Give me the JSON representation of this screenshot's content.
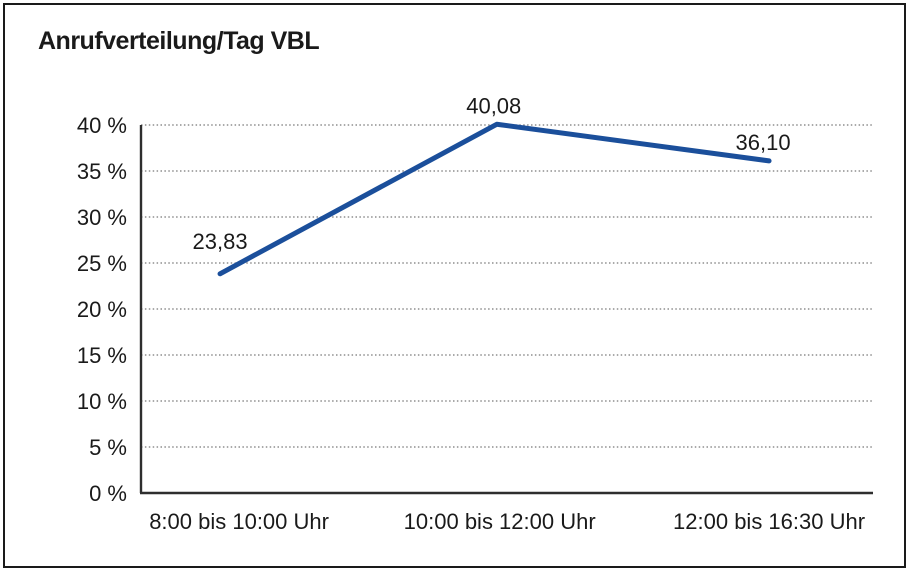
{
  "chart_data": {
    "type": "line",
    "title": "Anrufverteilung/Tag VBL",
    "categories": [
      "8:00 bis 10:00 Uhr",
      "10:00 bis 12:00 Uhr",
      "12:00 bis 16:30 Uhr"
    ],
    "series": [
      {
        "name": "Anrufverteilung/Tag VBL",
        "values": [
          23.83,
          40.08,
          36.1
        ]
      }
    ],
    "value_labels": [
      "23,83",
      "40,08",
      "36,10"
    ],
    "xlabel": "",
    "ylabel": "",
    "ylim": [
      0,
      40
    ],
    "ytick_step": 5,
    "ytick_labels": [
      "0 %",
      "5 %",
      "10 %",
      "15 %",
      "20 %",
      "25 %",
      "30 %",
      "35 %",
      "40 %"
    ],
    "grid": "horizontal-dotted",
    "legend": "none",
    "colors": {
      "line": "#1B4F9B",
      "axis": "#2e2e2e",
      "grid": "#777777",
      "text": "#1a1a1a",
      "background": "#ffffff",
      "frame_border": "#1a1a1a"
    }
  }
}
